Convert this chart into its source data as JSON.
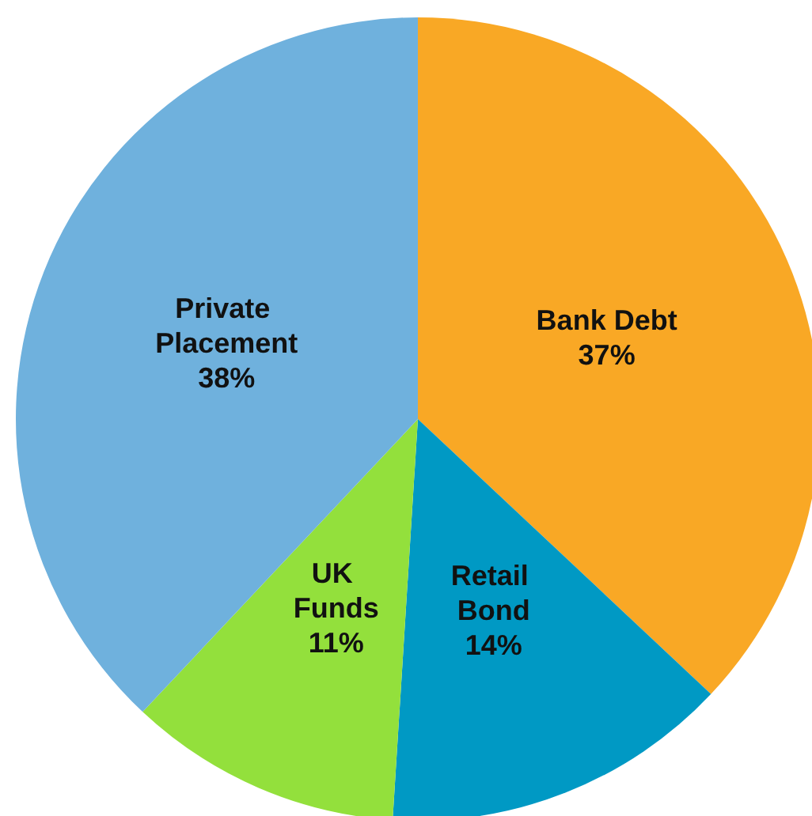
{
  "chart_data": {
    "type": "pie",
    "categories": [
      "Bank Debt",
      "Retail Bond",
      "UK Funds",
      "Private Placement"
    ],
    "values": [
      37,
      14,
      11,
      38
    ],
    "colors": [
      "#f9a825",
      "#0099c4",
      "#93e03c",
      "#6fb1dd"
    ],
    "value_labels": [
      "37%",
      "14%",
      "11%",
      "38%"
    ]
  }
}
